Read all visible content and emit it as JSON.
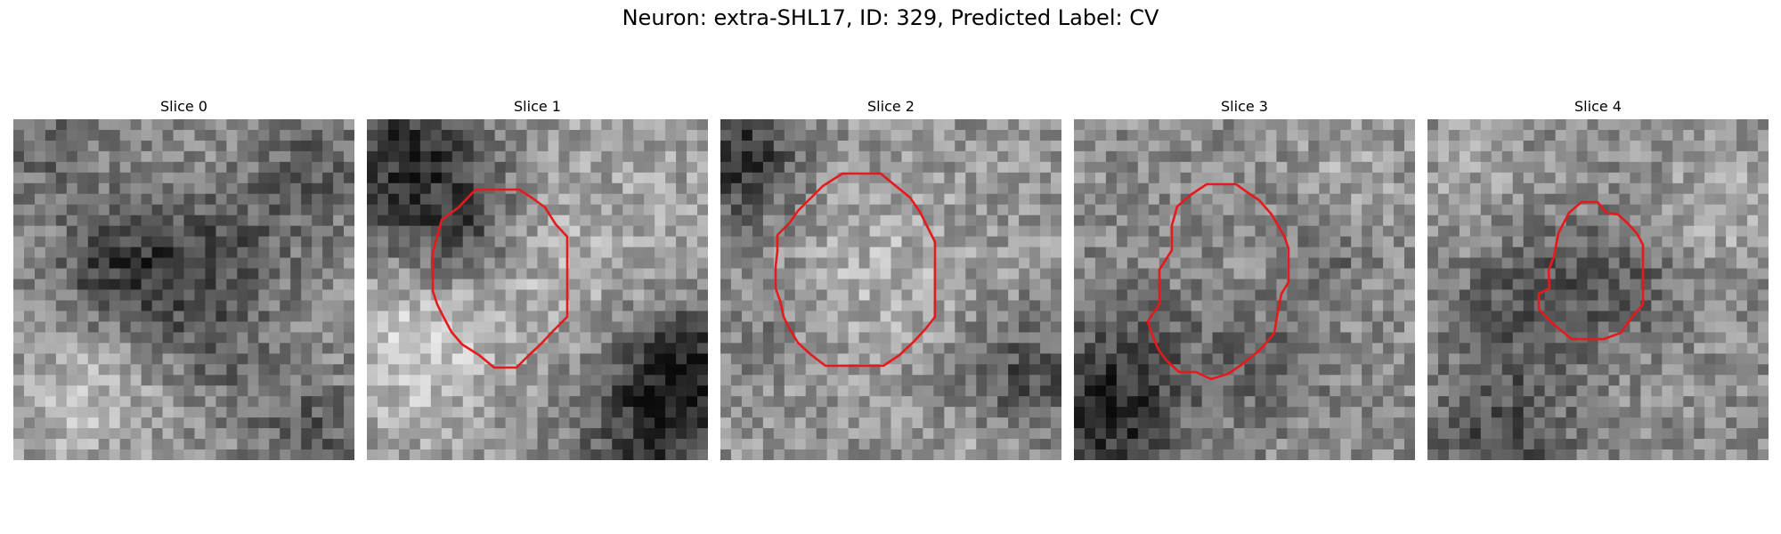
{
  "title": "Neuron: extra-SHL17, ID: 329, Predicted Label: CV",
  "contour_color": "#e8191c",
  "colormap": "gray",
  "panels": [
    {
      "title": "Slice 0",
      "has_contour": false,
      "dark_region": "band across middle-left"
    },
    {
      "title": "Slice 1",
      "has_contour": true,
      "dark_region": "upper-left and lower-right corners"
    },
    {
      "title": "Slice 2",
      "has_contour": true,
      "dark_region": "upper-left corner and right edge"
    },
    {
      "title": "Slice 3",
      "has_contour": true,
      "dark_region": "lower-left quadrant"
    },
    {
      "title": "Slice 4",
      "has_contour": true,
      "dark_region": "lower-left and center"
    }
  ]
}
